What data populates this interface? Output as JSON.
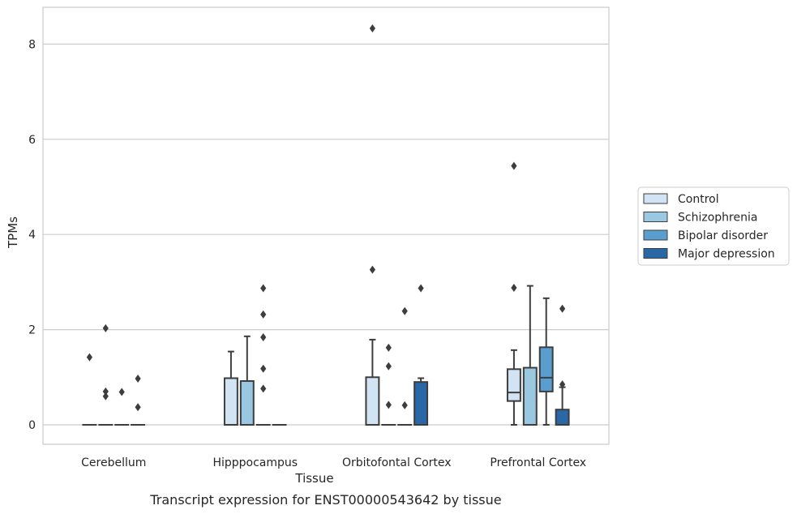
{
  "chart_data": {
    "type": "boxplot",
    "caption": "Transcript expression for ENST00000543642 by tissue",
    "xlabel": "Tissue",
    "ylabel": "TPMs",
    "ylim": [
      -0.4,
      8.75
    ],
    "yticks": [
      0,
      2,
      4,
      6,
      8
    ],
    "grid": true,
    "legend_position": "right",
    "categories": [
      "Cerebellum",
      "Hipppocampus",
      "Orbitofontal Cortex",
      "Prefrontal Cortex"
    ],
    "series": [
      {
        "name": "Control",
        "color": "#d2e3f3",
        "boxes": [
          {
            "whislo": 0,
            "q1": 0,
            "med": 0,
            "q3": 0,
            "whishi": 0,
            "fliers": [
              1.42
            ]
          },
          {
            "whislo": 0,
            "q1": 0,
            "med": 0,
            "q3": 0.98,
            "whishi": 1.54,
            "fliers": []
          },
          {
            "whislo": 0,
            "q1": 0,
            "med": 0,
            "q3": 1.0,
            "whishi": 1.79,
            "fliers": [
              3.26,
              8.33
            ]
          },
          {
            "whislo": 0,
            "q1": 0.5,
            "med": 0.68,
            "q3": 1.17,
            "whishi": 1.57,
            "fliers": [
              2.88,
              5.44
            ]
          }
        ]
      },
      {
        "name": "Schizophrenia",
        "color": "#9ac8e0",
        "boxes": [
          {
            "whislo": 0,
            "q1": 0,
            "med": 0,
            "q3": 0,
            "whishi": 0,
            "fliers": [
              0.6,
              0.7,
              2.03
            ]
          },
          {
            "whislo": 0,
            "q1": 0,
            "med": 0,
            "q3": 0.92,
            "whishi": 1.86,
            "fliers": []
          },
          {
            "whislo": 0,
            "q1": 0,
            "med": 0,
            "q3": 0,
            "whishi": 0,
            "fliers": [
              0.42,
              1.23,
              1.62
            ]
          },
          {
            "whislo": 0,
            "q1": 0,
            "med": 0,
            "q3": 1.2,
            "whishi": 2.92,
            "fliers": []
          }
        ]
      },
      {
        "name": "Bipolar disorder",
        "color": "#5a9ecf",
        "boxes": [
          {
            "whislo": 0,
            "q1": 0,
            "med": 0,
            "q3": 0,
            "whishi": 0,
            "fliers": [
              0.69
            ]
          },
          {
            "whislo": 0,
            "q1": 0,
            "med": 0,
            "q3": 0,
            "whishi": 0,
            "fliers": [
              0.76,
              1.18,
              1.84,
              2.32,
              2.87
            ]
          },
          {
            "whislo": 0,
            "q1": 0,
            "med": 0,
            "q3": 0,
            "whishi": 0,
            "fliers": [
              0.41,
              2.39
            ]
          },
          {
            "whislo": 0,
            "q1": 0.7,
            "med": 0.99,
            "q3": 1.63,
            "whishi": 2.66,
            "fliers": []
          }
        ]
      },
      {
        "name": "Major depression",
        "color": "#2a67a6",
        "boxes": [
          {
            "whislo": 0,
            "q1": 0,
            "med": 0,
            "q3": 0,
            "whishi": 0,
            "fliers": [
              0.37,
              0.97
            ]
          },
          {
            "whislo": 0,
            "q1": 0,
            "med": 0,
            "q3": 0,
            "whishi": 0,
            "fliers": []
          },
          {
            "whislo": 0,
            "q1": 0,
            "med": 0,
            "q3": 0.9,
            "whishi": 0.98,
            "fliers": [
              2.87
            ]
          },
          {
            "whislo": 0,
            "q1": 0,
            "med": 0,
            "q3": 0.32,
            "whishi": 0.79,
            "fliers": [
              0.85,
              2.44
            ]
          }
        ]
      }
    ]
  }
}
